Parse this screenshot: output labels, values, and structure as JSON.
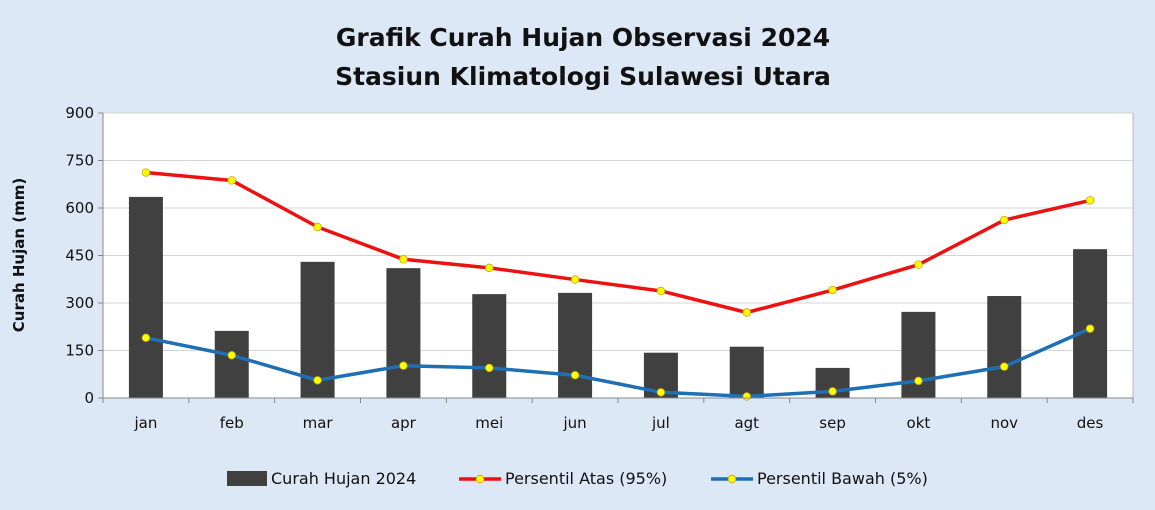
{
  "chart_data": {
    "type": "bar",
    "title": [
      "Grafik Curah Hujan Observasi 2024",
      "Stasiun Klimatologi Sulawesi Utara"
    ],
    "xlabel": "",
    "ylabel": "Curah Hujan (mm)",
    "ylim": [
      0,
      900
    ],
    "yticks": [
      "0",
      "150",
      "300",
      "450",
      "600",
      "750",
      "900"
    ],
    "ytick_values": [
      0,
      150,
      300,
      450,
      600,
      750,
      900
    ],
    "grid": true,
    "legend_position": "bottom",
    "categories": [
      "jan",
      "feb",
      "mar",
      "apr",
      "mei",
      "jun",
      "jul",
      "agt",
      "sep",
      "okt",
      "nov",
      "des"
    ],
    "series": [
      {
        "name": "Curah Hujan 2024",
        "kind": "bar",
        "color": "#404040",
        "values": [
          635,
          212,
          430,
          410,
          328,
          332,
          143,
          162,
          95,
          272,
          322,
          470
        ]
      },
      {
        "name": "Persentil Atas (95%)",
        "kind": "line",
        "color": "#ee1111",
        "marker_color": "#ffff00",
        "values": [
          712,
          687,
          540,
          438,
          411,
          374,
          338,
          270,
          341,
          421,
          562,
          624
        ]
      },
      {
        "name": "Persentil Bawah (5%)",
        "kind": "line",
        "color": "#1f6fb5",
        "marker_color": "#ffff00",
        "values": [
          190,
          135,
          56,
          102,
          95,
          72,
          18,
          5,
          21,
          54,
          99,
          219
        ]
      }
    ]
  }
}
